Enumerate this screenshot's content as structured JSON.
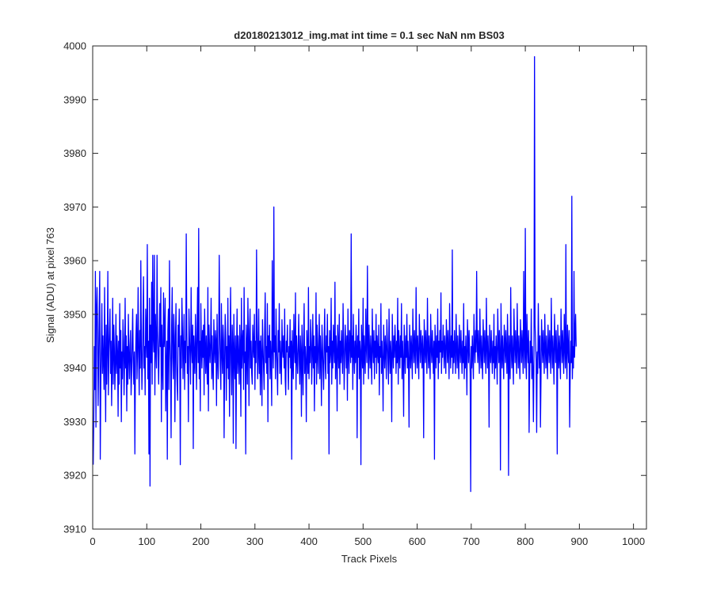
{
  "chart_data": {
    "type": "line",
    "title": "d20180213012_img.mat int time = 0.1 sec  NaN nm BS03",
    "xlabel": "Track Pixels",
    "ylabel": "Signal (ADU) at pixel 763",
    "xlim": [
      0,
      1024
    ],
    "ylim": [
      3910,
      4000
    ],
    "xticks": [
      0,
      100,
      200,
      300,
      400,
      500,
      600,
      700,
      800,
      900,
      1000
    ],
    "yticks": [
      3910,
      3920,
      3930,
      3940,
      3950,
      3960,
      3970,
      3980,
      3990,
      4000
    ],
    "grid": false,
    "legend": "none",
    "series": [
      {
        "color": "#0000ff",
        "x_start": 1,
        "x_step": 1,
        "values": [
          3922,
          3931,
          3944,
          3936,
          3958,
          3929,
          3951,
          3955,
          3947,
          3933,
          3941,
          3950,
          3958,
          3923,
          3937,
          3944,
          3952,
          3939,
          3946,
          3941,
          3936,
          3955,
          3942,
          3930,
          3948,
          3937,
          3944,
          3958,
          3935,
          3943,
          3947,
          3951,
          3939,
          3945,
          3933,
          3942,
          3953,
          3937,
          3948,
          3944,
          3936,
          3941,
          3950,
          3939,
          3946,
          3943,
          3931,
          3945,
          3937,
          3952,
          3940,
          3947,
          3930,
          3943,
          3938,
          3949,
          3945,
          3935,
          3941,
          3953,
          3940,
          3946,
          3932,
          3944,
          3937,
          3950,
          3942,
          3938,
          3944,
          3947,
          3935,
          3939,
          3945,
          3951,
          3941,
          3937,
          3943,
          3924,
          3940,
          3946,
          3950,
          3938,
          3944,
          3955,
          3942,
          3935,
          3947,
          3940,
          3960,
          3945,
          3936,
          3941,
          3949,
          3957,
          3940,
          3944,
          3935,
          3951,
          3946,
          3942,
          3963,
          3938,
          3945,
          3924,
          3953,
          3918,
          3948,
          3941,
          3956,
          3937,
          3961,
          3946,
          3943,
          3961,
          3935,
          3950,
          3944,
          3940,
          3961,
          3947,
          3942,
          3937,
          3945,
          3952,
          3944,
          3955,
          3930,
          3948,
          3941,
          3936,
          3954,
          3944,
          3946,
          3953,
          3932,
          3940,
          3945,
          3923,
          3947,
          3951,
          3936,
          3960,
          3945,
          3941,
          3927,
          3948,
          3955,
          3942,
          3938,
          3950,
          3946,
          3930,
          3944,
          3952,
          3941,
          3937,
          3934,
          3948,
          3944,
          3951,
          3942,
          3922,
          3946,
          3940,
          3953,
          3947,
          3938,
          3944,
          3950,
          3936,
          3945,
          3941,
          3965,
          3947,
          3939,
          3944,
          3930,
          3951,
          3946,
          3942,
          3937,
          3955,
          3944,
          3941,
          3948,
          3925,
          3946,
          3942,
          3939,
          3950,
          3944,
          3936,
          3947,
          3955,
          3941,
          3966,
          3938,
          3945,
          3932,
          3952,
          3944,
          3940,
          3947,
          3942,
          3948,
          3935,
          3951,
          3944,
          3939,
          3946,
          3941,
          3937,
          3955,
          3932,
          3948,
          3944,
          3941,
          3945,
          3953,
          3938,
          3946,
          3940,
          3936,
          3949,
          3944,
          3941,
          3947,
          3945,
          3933,
          3950,
          3942,
          3938,
          3944,
          3961,
          3947,
          3940,
          3936,
          3952,
          3943,
          3939,
          3948,
          3945,
          3927,
          3941,
          3950,
          3946,
          3934,
          3944,
          3940,
          3953,
          3938,
          3946,
          3931,
          3944,
          3955,
          3941,
          3935,
          3948,
          3944,
          3926,
          3950,
          3942,
          3938,
          3946,
          3925,
          3943,
          3951,
          3939,
          3946,
          3942,
          3937,
          3948,
          3944,
          3931,
          3953,
          3940,
          3945,
          3947,
          3936,
          3955,
          3941,
          3943,
          3924,
          3948,
          3944,
          3937,
          3953,
          3945,
          3933,
          3947,
          3951,
          3940,
          3945,
          3939,
          3937,
          3948,
          3944,
          3942,
          3950,
          3936,
          3945,
          3941,
          3962,
          3947,
          3938,
          3943,
          3951,
          3939,
          3945,
          3935,
          3946,
          3942,
          3933,
          3949,
          3944,
          3940,
          3936,
          3947,
          3954,
          3941,
          3944,
          3939,
          3952,
          3930,
          3946,
          3942,
          3948,
          3938,
          3945,
          3941,
          3933,
          3960,
          3944,
          3940,
          3970,
          3943,
          3946,
          3938,
          3951,
          3944,
          3940,
          3935,
          3947,
          3943,
          3952,
          3939,
          3945,
          3941,
          3937,
          3949,
          3944,
          3942,
          3946,
          3940,
          3951,
          3938,
          3935,
          3945,
          3943,
          3948,
          3941,
          3936,
          3944,
          3942,
          3949,
          3940,
          3945,
          3923,
          3947,
          3942,
          3938,
          3950,
          3944,
          3941,
          3954,
          3936,
          3946,
          3942,
          3939,
          3944,
          3950,
          3941,
          3937,
          3946,
          3943,
          3931,
          3948,
          3942,
          3935,
          3945,
          3952,
          3939,
          3944,
          3941,
          3930,
          3947,
          3943,
          3939,
          3955,
          3938,
          3944,
          3941,
          3949,
          3945,
          3937,
          3943,
          3950,
          3940,
          3946,
          3932,
          3944,
          3941,
          3954,
          3937,
          3948,
          3943,
          3939,
          3945,
          3950,
          3938,
          3946,
          3942,
          3933,
          3948,
          3944,
          3940,
          3936,
          3945,
          3951,
          3941,
          3938,
          3946,
          3943,
          3950,
          3939,
          3944,
          3924,
          3947,
          3941,
          3943,
          3953,
          3937,
          3945,
          3940,
          3948,
          3944,
          3941,
          3956,
          3938,
          3946,
          3943,
          3932,
          3948,
          3944,
          3940,
          3950,
          3937,
          3945,
          3941,
          3947,
          3943,
          3939,
          3952,
          3945,
          3936,
          3942,
          3948,
          3944,
          3940,
          3946,
          3934,
          3951,
          3943,
          3939,
          3947,
          3945,
          3941,
          3965,
          3942,
          3946,
          3936,
          3950,
          3943,
          3939,
          3945,
          3941,
          3948,
          3944,
          3927,
          3946,
          3942,
          3951,
          3938,
          3945,
          3943,
          3922,
          3948,
          3944,
          3940,
          3953,
          3937,
          3946,
          3942,
          3939,
          3951,
          3944,
          3941,
          3959,
          3945,
          3938,
          3948,
          3943,
          3940,
          3946,
          3942,
          3937,
          3951,
          3944,
          3941,
          3947,
          3938,
          3945,
          3942,
          3950,
          3939,
          3946,
          3943,
          3941,
          3948,
          3935,
          3944,
          3942,
          3952,
          3939,
          3945,
          3941,
          3932,
          3948,
          3944,
          3940,
          3946,
          3943,
          3938,
          3949,
          3945,
          3941,
          3937,
          3951,
          3943,
          3939,
          3945,
          3942,
          3930,
          3950,
          3944,
          3940,
          3946,
          3942,
          3948,
          3944,
          3939,
          3945,
          3941,
          3953,
          3937,
          3947,
          3943,
          3940,
          3946,
          3942,
          3952,
          3938,
          3945,
          3941,
          3931,
          3948,
          3944,
          3939,
          3946,
          3942,
          3950,
          3940,
          3945,
          3941,
          3929,
          3948,
          3944,
          3940,
          3946,
          3943,
          3938,
          3951,
          3944,
          3941,
          3947,
          3943,
          3939,
          3955,
          3944,
          3940,
          3946,
          3942,
          3938,
          3950,
          3945,
          3941,
          3947,
          3944,
          3940,
          3946,
          3943,
          3927,
          3949,
          3945,
          3941,
          3947,
          3943,
          3939,
          3953,
          3944,
          3940,
          3946,
          3942,
          3938,
          3950,
          3944,
          3941,
          3947,
          3943,
          3939,
          3945,
          3923,
          3948,
          3944,
          3940,
          3946,
          3942,
          3951,
          3938,
          3945,
          3941,
          3947,
          3943,
          3954,
          3939,
          3945,
          3942,
          3948,
          3944,
          3940,
          3946,
          3943,
          3939,
          3949,
          3945,
          3941,
          3947,
          3943,
          3938,
          3952,
          3944,
          3940,
          3946,
          3942,
          3962,
          3939,
          3945,
          3941,
          3947,
          3943,
          3939,
          3950,
          3944,
          3940,
          3946,
          3942,
          3938,
          3948,
          3944,
          3941,
          3947,
          3943,
          3939,
          3945,
          3941,
          3952,
          3938,
          3944,
          3940,
          3946,
          3942,
          3935,
          3949,
          3945,
          3941,
          3947,
          3943,
          3939,
          3917,
          3944,
          3940,
          3946,
          3942,
          3938,
          3950,
          3944,
          3941,
          3947,
          3943,
          3958,
          3945,
          3941,
          3947,
          3943,
          3939,
          3951,
          3944,
          3940,
          3946,
          3942,
          3938,
          3949,
          3945,
          3941,
          3947,
          3943,
          3939,
          3953,
          3944,
          3940,
          3946,
          3942,
          3929,
          3948,
          3944,
          3941,
          3947,
          3943,
          3939,
          3945,
          3941,
          3950,
          3938,
          3944,
          3940,
          3946,
          3942,
          3937,
          3951,
          3945,
          3941,
          3947,
          3943,
          3921,
          3952,
          3944,
          3940,
          3946,
          3942,
          3938,
          3948,
          3945,
          3941,
          3947,
          3943,
          3939,
          3950,
          3944,
          3920,
          3946,
          3942,
          3938,
          3955,
          3944,
          3940,
          3946,
          3942,
          3937,
          3951,
          3945,
          3941,
          3947,
          3943,
          3939,
          3952,
          3944,
          3940,
          3946,
          3942,
          3938,
          3949,
          3945,
          3941,
          3947,
          3943,
          3939,
          3958,
          3944,
          3940,
          3966,
          3942,
          3938,
          3950,
          3944,
          3941,
          3947,
          3928,
          3939,
          3945,
          3941,
          3951,
          3938,
          3944,
          3940,
          3930,
          3942,
          3998,
          3948,
          3945,
          3941,
          3928,
          3943,
          3939,
          3952,
          3944,
          3940,
          3946,
          3929,
          3938,
          3949,
          3945,
          3941,
          3947,
          3943,
          3939,
          3950,
          3944,
          3940,
          3946,
          3942,
          3938,
          3948,
          3944,
          3941,
          3947,
          3943,
          3939,
          3953,
          3944,
          3940,
          3946,
          3942,
          3937,
          3950,
          3945,
          3941,
          3947,
          3943,
          3924,
          3948,
          3944,
          3940,
          3946,
          3942,
          3938,
          3951,
          3945,
          3941,
          3947,
          3943,
          3939,
          3950,
          3944,
          3940,
          3963,
          3942,
          3938,
          3948,
          3944,
          3941,
          3947,
          3929,
          3939,
          3945,
          3941,
          3972,
          3938,
          3944,
          3940,
          3958,
          3942,
          3946,
          3950,
          3944
        ]
      }
    ]
  }
}
